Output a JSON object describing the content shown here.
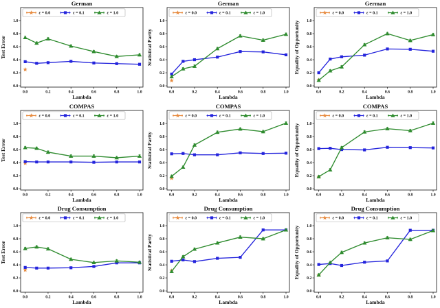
{
  "figure": {
    "background": "#ffffff",
    "grid": {
      "rows": 3,
      "cols": 3
    },
    "row_titles": [
      "German",
      "COMPAS",
      "Drug Consumption"
    ],
    "col_ylabels": [
      "Test Error",
      "Statistical Parity",
      "Equality of Opportunity"
    ],
    "xlabel": "Lambda",
    "x_ticks": [
      0.0,
      0.2,
      0.4,
      0.6,
      0.8,
      1.0
    ],
    "y_ticks": [
      0.0,
      0.2,
      0.4,
      0.6,
      0.8,
      1.0
    ],
    "legend": {
      "position": "upper center inside axes, horizontal",
      "labels": [
        "ε = 0.0",
        "ε = 0.1",
        "ε = 1.0"
      ],
      "markers": [
        "star",
        "square",
        "triangle"
      ],
      "colors": [
        "#E78A3E",
        "#2424DC",
        "#2E8B2E"
      ]
    },
    "colors": {
      "eps_0_0": "#E78A3E",
      "eps_0_1": "#2424DC",
      "eps_1_0": "#2E8B2E",
      "axis": "#111111"
    }
  },
  "chart_data": [
    {
      "type": "line",
      "title": "German",
      "xlabel": "Lambda",
      "ylabel": "Test Error",
      "x": [
        0.0,
        0.1,
        0.2,
        0.4,
        0.6,
        0.8,
        1.0
      ],
      "xlim": [
        -0.04,
        1.03
      ],
      "ylim": [
        -0.02,
        1.2
      ],
      "series": [
        {
          "name": "ε = 0.0",
          "marker": "star",
          "color": "#E78A3E",
          "x": [
            0.0
          ],
          "values": [
            0.25
          ],
          "err": 0.01
        },
        {
          "name": "ε = 0.1",
          "marker": "square",
          "color": "#2424DC",
          "values": [
            0.37,
            0.345,
            0.355,
            0.375,
            0.35,
            0.34,
            0.33
          ],
          "err": 0.012
        },
        {
          "name": "ε = 1.0",
          "marker": "triangle",
          "color": "#2E8B2E",
          "values": [
            0.74,
            0.655,
            0.72,
            0.61,
            0.525,
            0.45,
            0.475
          ],
          "err": 0.02
        }
      ]
    },
    {
      "type": "line",
      "title": "German",
      "xlabel": "Lambda",
      "ylabel": "Statistical Parity",
      "x": [
        0.0,
        0.1,
        0.2,
        0.4,
        0.6,
        0.8,
        1.0
      ],
      "xlim": [
        -0.04,
        1.03
      ],
      "ylim": [
        -0.02,
        1.2
      ],
      "series": [
        {
          "name": "ε = 0.0",
          "marker": "star",
          "color": "#E78A3E",
          "x": [
            0.0
          ],
          "values": [
            0.08
          ],
          "err": 0.01
        },
        {
          "name": "ε = 0.1",
          "marker": "square",
          "color": "#2424DC",
          "values": [
            0.18,
            0.375,
            0.4,
            0.44,
            0.525,
            0.52,
            0.475
          ],
          "err": 0.012
        },
        {
          "name": "ε = 1.0",
          "marker": "triangle",
          "color": "#2E8B2E",
          "values": [
            0.14,
            0.26,
            0.3,
            0.57,
            0.765,
            0.7,
            0.79
          ],
          "err": 0.02
        }
      ]
    },
    {
      "type": "line",
      "title": "German",
      "xlabel": "Lambda",
      "ylabel": "Equality of Opportunity",
      "x": [
        0.0,
        0.1,
        0.2,
        0.4,
        0.6,
        0.8,
        1.0
      ],
      "xlim": [
        -0.04,
        1.03
      ],
      "ylim": [
        -0.02,
        1.2
      ],
      "series": [
        {
          "name": "ε = 0.0",
          "marker": "star",
          "color": "#E78A3E",
          "x": [
            0.0
          ],
          "values": [
            0.09
          ],
          "err": 0.01
        },
        {
          "name": "ε = 0.1",
          "marker": "square",
          "color": "#2424DC",
          "values": [
            0.2,
            0.41,
            0.445,
            0.47,
            0.565,
            0.56,
            0.53
          ],
          "err": 0.012
        },
        {
          "name": "ε = 1.0",
          "marker": "triangle",
          "color": "#2E8B2E",
          "values": [
            0.085,
            0.23,
            0.29,
            0.63,
            0.8,
            0.695,
            0.785
          ],
          "err": 0.02
        }
      ]
    },
    {
      "type": "line",
      "title": "COMPAS",
      "xlabel": "Lambda",
      "ylabel": "Test Error",
      "x": [
        0.0,
        0.1,
        0.2,
        0.4,
        0.6,
        0.8,
        1.0
      ],
      "xlim": [
        -0.04,
        1.03
      ],
      "ylim": [
        -0.02,
        1.2
      ],
      "series": [
        {
          "name": "ε = 0.0",
          "marker": "star",
          "color": "#E78A3E",
          "x": [
            0.0
          ],
          "values": [
            0.39
          ],
          "err": 0.01
        },
        {
          "name": "ε = 0.1",
          "marker": "square",
          "color": "#2424DC",
          "values": [
            0.415,
            0.41,
            0.41,
            0.41,
            0.405,
            0.41,
            0.41
          ],
          "err": 0.012
        },
        {
          "name": "ε = 1.0",
          "marker": "triangle",
          "color": "#2E8B2E",
          "values": [
            0.63,
            0.62,
            0.56,
            0.5,
            0.5,
            0.475,
            0.5
          ],
          "err": 0.02
        }
      ]
    },
    {
      "type": "line",
      "title": "COMPAS",
      "xlabel": "Lambda",
      "ylabel": "Statistical Parity",
      "x": [
        0.0,
        0.1,
        0.2,
        0.4,
        0.6,
        0.8,
        1.0
      ],
      "xlim": [
        -0.04,
        1.03
      ],
      "ylim": [
        -0.02,
        1.2
      ],
      "series": [
        {
          "name": "ε = 0.0",
          "marker": "star",
          "color": "#E78A3E",
          "x": [
            0.0
          ],
          "values": [
            0.16
          ],
          "err": 0.01
        },
        {
          "name": "ε = 0.1",
          "marker": "square",
          "color": "#2424DC",
          "values": [
            0.535,
            0.54,
            0.52,
            0.52,
            0.55,
            0.54,
            0.545
          ],
          "err": 0.012
        },
        {
          "name": "ε = 1.0",
          "marker": "triangle",
          "color": "#2E8B2E",
          "values": [
            0.19,
            0.33,
            0.67,
            0.865,
            0.915,
            0.875,
            1.005
          ],
          "err": 0.02
        }
      ]
    },
    {
      "type": "line",
      "title": "COMPAS",
      "xlabel": "Lambda",
      "ylabel": "Equality of Opportunity",
      "x": [
        0.0,
        0.1,
        0.2,
        0.4,
        0.6,
        0.8,
        1.0
      ],
      "xlim": [
        -0.04,
        1.03
      ],
      "ylim": [
        -0.02,
        1.2
      ],
      "series": [
        {
          "name": "ε = 0.0",
          "marker": "star",
          "color": "#E78A3E",
          "x": [
            0.0
          ],
          "values": [
            0.18
          ],
          "err": 0.01
        },
        {
          "name": "ε = 0.1",
          "marker": "square",
          "color": "#2424DC",
          "values": [
            0.615,
            0.62,
            0.6,
            0.595,
            0.635,
            0.63,
            0.625
          ],
          "err": 0.012
        },
        {
          "name": "ε = 1.0",
          "marker": "triangle",
          "color": "#2E8B2E",
          "values": [
            0.185,
            0.29,
            0.63,
            0.87,
            0.92,
            0.89,
            1.005
          ],
          "err": 0.02
        }
      ]
    },
    {
      "type": "line",
      "title": "Drug Consumption",
      "xlabel": "Lambda",
      "ylabel": "Test Error",
      "x": [
        0.0,
        0.1,
        0.2,
        0.4,
        0.6,
        0.8,
        1.0
      ],
      "xlim": [
        -0.04,
        1.03
      ],
      "ylim": [
        -0.02,
        1.2
      ],
      "series": [
        {
          "name": "ε = 0.0",
          "marker": "star",
          "color": "#E78A3E",
          "x": [
            0.0
          ],
          "values": [
            0.32
          ],
          "err": 0.01
        },
        {
          "name": "ε = 0.1",
          "marker": "square",
          "color": "#2424DC",
          "values": [
            0.36,
            0.35,
            0.35,
            0.355,
            0.375,
            0.43,
            0.43
          ],
          "err": 0.012
        },
        {
          "name": "ε = 1.0",
          "marker": "triangle",
          "color": "#2E8B2E",
          "values": [
            0.65,
            0.675,
            0.645,
            0.485,
            0.435,
            0.46,
            0.44
          ],
          "err": 0.02
        }
      ]
    },
    {
      "type": "line",
      "title": "Drug Consumption",
      "xlabel": "Lambda",
      "ylabel": "Statistical Parity",
      "x": [
        0.0,
        0.1,
        0.2,
        0.4,
        0.6,
        0.8,
        1.0
      ],
      "xlim": [
        -0.04,
        1.03
      ],
      "ylim": [
        -0.02,
        1.2
      ],
      "series": [
        {
          "name": "ε = 0.0",
          "marker": "star",
          "color": "#E78A3E",
          "x": [
            0.0
          ],
          "values": [
            0.31
          ],
          "err": 0.01
        },
        {
          "name": "ε = 0.1",
          "marker": "square",
          "color": "#2424DC",
          "values": [
            0.455,
            0.475,
            0.45,
            0.5,
            0.515,
            0.935,
            0.935
          ],
          "err": 0.012
        },
        {
          "name": "ε = 1.0",
          "marker": "triangle",
          "color": "#2E8B2E",
          "values": [
            0.3,
            0.525,
            0.64,
            0.735,
            0.825,
            0.8,
            0.935
          ],
          "err": 0.02
        }
      ]
    },
    {
      "type": "line",
      "title": "Drug Consumption",
      "xlabel": "Lambda",
      "ylabel": "Equality of Opportunity",
      "x": [
        0.0,
        0.1,
        0.2,
        0.4,
        0.6,
        0.8,
        1.0
      ],
      "xlim": [
        -0.04,
        1.03
      ],
      "ylim": [
        -0.02,
        1.2
      ],
      "series": [
        {
          "name": "ε = 0.0",
          "marker": "star",
          "color": "#E78A3E",
          "x": [
            0.0
          ],
          "values": [
            0.24
          ],
          "err": 0.01
        },
        {
          "name": "ε = 0.1",
          "marker": "square",
          "color": "#2424DC",
          "values": [
            0.405,
            0.42,
            0.39,
            0.44,
            0.46,
            0.93,
            0.93
          ],
          "err": 0.012
        },
        {
          "name": "ε = 1.0",
          "marker": "triangle",
          "color": "#2E8B2E",
          "values": [
            0.245,
            0.435,
            0.59,
            0.735,
            0.815,
            0.79,
            0.925
          ],
          "err": 0.02
        }
      ]
    }
  ]
}
